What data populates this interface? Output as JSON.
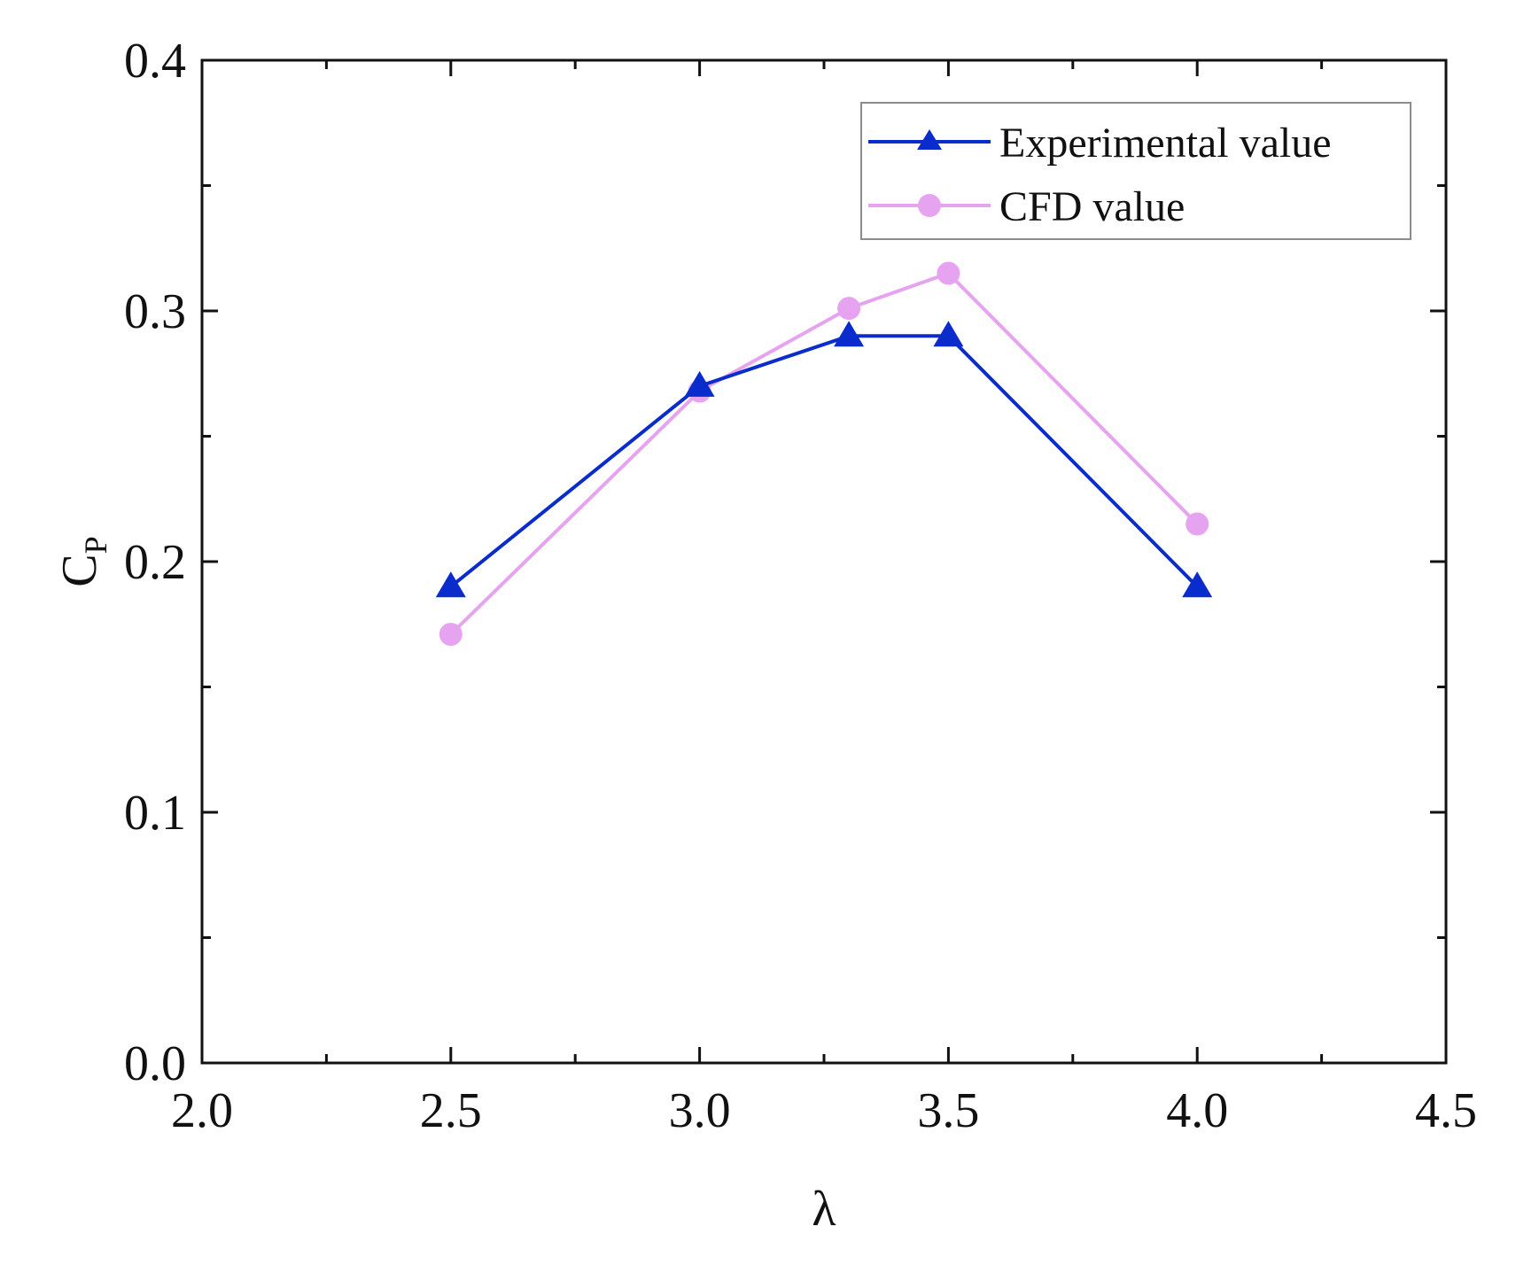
{
  "chart_data": {
    "type": "line",
    "title": "",
    "xlabel": "λ",
    "ylabel": "C",
    "ylabel_subscript": "P",
    "xlim": [
      2.0,
      4.5
    ],
    "ylim": [
      0.0,
      0.4
    ],
    "x_ticks": [
      2.0,
      2.5,
      3.0,
      3.5,
      4.0,
      4.5
    ],
    "x_tick_labels": [
      "2.0",
      "2.5",
      "3.0",
      "3.5",
      "4.0",
      "4.5"
    ],
    "x_minor_ticks": [
      2.25,
      2.75,
      3.25,
      3.75,
      4.25
    ],
    "y_ticks": [
      0.0,
      0.1,
      0.2,
      0.3,
      0.4
    ],
    "y_tick_labels": [
      "0.0",
      "0.1",
      "0.2",
      "0.3",
      "0.4"
    ],
    "y_minor_ticks": [
      0.05,
      0.15,
      0.25,
      0.35
    ],
    "grid": false,
    "legend_position": "top-right",
    "series": [
      {
        "name": "Experimental value",
        "marker": "triangle",
        "color": "#0a2ccc",
        "x": [
          2.5,
          3.0,
          3.3,
          3.5,
          4.0
        ],
        "y": [
          0.19,
          0.27,
          0.29,
          0.29,
          0.19
        ]
      },
      {
        "name": "CFD value",
        "marker": "circle",
        "color": "#e6a3f0",
        "x": [
          2.5,
          3.0,
          3.3,
          3.5,
          4.0
        ],
        "y": [
          0.171,
          0.268,
          0.301,
          0.315,
          0.215
        ]
      }
    ]
  }
}
